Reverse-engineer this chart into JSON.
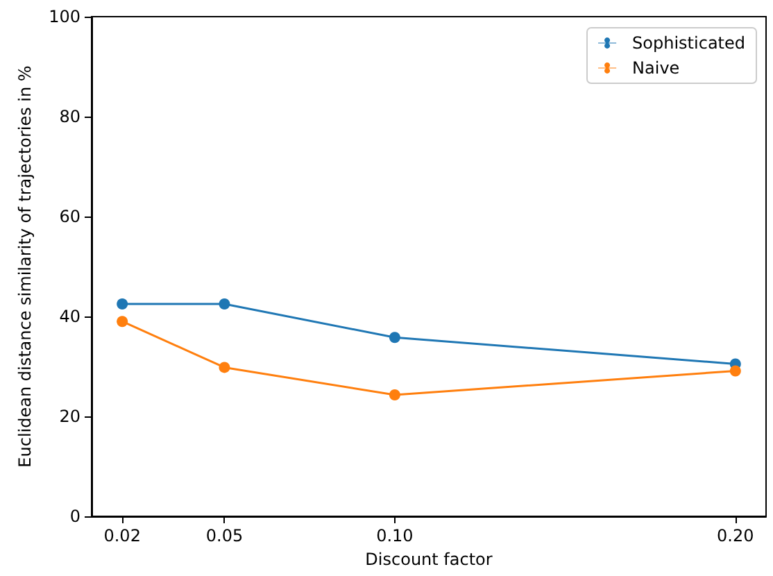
{
  "chart_data": {
    "type": "line",
    "xlabel": "Discount factor",
    "ylabel": "Euclidean distance similarity of trajectories in %",
    "x": [
      0.02,
      0.05,
      0.1,
      0.2
    ],
    "series": [
      {
        "name": "Sophisticated",
        "color": "#1f77b4",
        "values": [
          42.5,
          42.5,
          35.8,
          30.5
        ]
      },
      {
        "name": "Naive",
        "color": "#ff7f0e",
        "values": [
          39,
          29.8,
          24.3,
          29.1
        ]
      }
    ],
    "xlim": [
      0.011,
      0.209
    ],
    "xticks": [
      0.02,
      0.05,
      {
        "value": 0.1,
        "label": "0.10"
      },
      {
        "value": 0.2,
        "label": "0.20"
      }
    ],
    "ylim": [
      0,
      100
    ],
    "yticks": [
      0,
      20,
      40,
      60,
      80,
      100
    ],
    "grid": false,
    "legend": "top right",
    "marker": "circle",
    "line_style": "solid"
  }
}
